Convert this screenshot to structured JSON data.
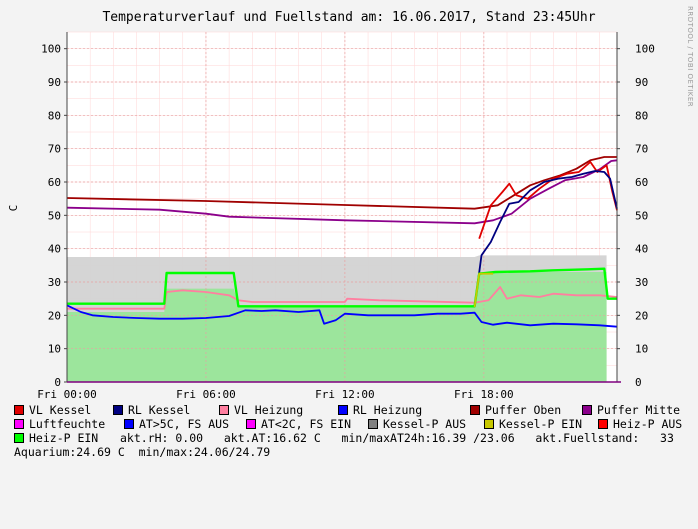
{
  "title": "Temperaturverlauf und Fuellstand am: 16.06.2017, Stand 23:45Uhr",
  "watermark": "RRDTOOL / TOBI OETIKER",
  "ylabel": "C",
  "legend": {
    "row1": [
      {
        "label": "VL Kessel",
        "color": "#e00000"
      },
      {
        "label": "RL Kessel",
        "color": "#000080"
      },
      {
        "label": "VL Heizung",
        "color": "#ff7fa0"
      },
      {
        "label": "RL Heizung",
        "color": "#0000ff"
      },
      {
        "label": "Puffer Oben",
        "color": "#a00000"
      },
      {
        "label": "Puffer Mitte",
        "color": "#8b008b"
      }
    ],
    "row2": [
      {
        "label": "Luftfeuchte",
        "color": "#ff00ff"
      },
      {
        "label": "AT>5C, FS AUS",
        "color": "#0000ff"
      },
      {
        "label": "AT<2C, FS EIN",
        "color": "#ff00ff"
      },
      {
        "label": "Kessel-P AUS",
        "color": "#808080"
      },
      {
        "label": "Kessel-P EIN",
        "color": "#c8c800"
      },
      {
        "label": "Heiz-P AUS",
        "color": "#ff0000"
      }
    ],
    "row3": [
      {
        "label": "Heiz-P EIN",
        "color": "#00ff00"
      }
    ],
    "row3_text": "akt.rH: 0.00   akt.AT:16.62 C   min/maxAT24h:16.39 /23.06   akt.Fuellstand:   33",
    "row4_text": "Aquarium:24.69 C  min/max:24.06/24.79"
  },
  "chart_data": {
    "type": "line",
    "x_unit": "hours since Fri 00:00",
    "xlim": [
      0,
      23.75
    ],
    "ylim": [
      0,
      105
    ],
    "yticks": [
      0,
      10,
      20,
      30,
      40,
      50,
      60,
      70,
      80,
      90,
      100
    ],
    "xticks": [
      {
        "label": "Fri 00:00",
        "x": 0
      },
      {
        "label": "Fri 06:00",
        "x": 6
      },
      {
        "label": "Fri 12:00",
        "x": 12
      },
      {
        "label": "Fri 18:00",
        "x": 18
      }
    ],
    "grid": true,
    "areas": [
      {
        "name": "Fuellstand",
        "color": "#99e699",
        "points": [
          [
            0,
            21
          ],
          [
            4.2,
            21
          ],
          [
            4.3,
            28
          ],
          [
            7.2,
            28
          ],
          [
            7.4,
            23
          ],
          [
            17.6,
            23
          ],
          [
            17.8,
            33
          ],
          [
            23.3,
            33
          ],
          [
            23.3,
            0
          ]
        ]
      },
      {
        "name": "Kessel-P AUS",
        "color": "#d3d3d3",
        "points": [
          [
            0,
            37.5
          ],
          [
            17.6,
            37.5
          ],
          [
            17.8,
            38
          ],
          [
            23.3,
            38
          ]
        ]
      }
    ],
    "series": [
      {
        "name": "Puffer Oben",
        "color": "#a00000",
        "points": [
          [
            0,
            55.2
          ],
          [
            6,
            54.3
          ],
          [
            12,
            53.1
          ],
          [
            17.6,
            52
          ],
          [
            18.6,
            53
          ],
          [
            19.3,
            56
          ],
          [
            20,
            59
          ],
          [
            20.6,
            60.5
          ],
          [
            21.3,
            62
          ],
          [
            22,
            64
          ],
          [
            22.6,
            66.5
          ],
          [
            23.2,
            67.5
          ],
          [
            23.75,
            67.5
          ]
        ]
      },
      {
        "name": "Puffer Mitte",
        "color": "#8b008b",
        "points": [
          [
            0,
            52.3
          ],
          [
            4,
            51.7
          ],
          [
            6,
            50.5
          ],
          [
            7,
            49.6
          ],
          [
            12,
            48.5
          ],
          [
            17.6,
            47.6
          ],
          [
            18.4,
            48.5
          ],
          [
            19.2,
            50.5
          ],
          [
            20,
            55
          ],
          [
            20.8,
            58
          ],
          [
            21.5,
            60.5
          ],
          [
            22.3,
            61.5
          ],
          [
            23,
            63.8
          ],
          [
            23.5,
            66.3
          ],
          [
            23.75,
            66.5
          ]
        ]
      },
      {
        "name": "VL Kessel",
        "color": "#e00000",
        "points": [
          [
            17.8,
            43
          ],
          [
            18.3,
            53
          ],
          [
            18.8,
            57
          ],
          [
            19.1,
            59.5
          ],
          [
            19.4,
            56
          ],
          [
            19.9,
            55
          ],
          [
            20.4,
            58
          ],
          [
            21,
            61
          ],
          [
            21.6,
            62.5
          ],
          [
            22.1,
            63
          ],
          [
            22.6,
            66
          ],
          [
            22.9,
            63
          ],
          [
            23.3,
            65
          ],
          [
            23.55,
            57
          ],
          [
            23.75,
            51.5
          ]
        ]
      },
      {
        "name": "RL Kessel",
        "color": "#000080",
        "points": [
          [
            17.6,
            22.5
          ],
          [
            17.9,
            38
          ],
          [
            18.3,
            42
          ],
          [
            18.7,
            48
          ],
          [
            19.1,
            53.5
          ],
          [
            19.5,
            54
          ],
          [
            20,
            57.5
          ],
          [
            20.6,
            60
          ],
          [
            21.2,
            61
          ],
          [
            21.8,
            61.5
          ],
          [
            22.3,
            62.5
          ],
          [
            22.8,
            63.3
          ],
          [
            23.2,
            63
          ],
          [
            23.45,
            61
          ],
          [
            23.75,
            52
          ]
        ]
      },
      {
        "name": "VL Heizung",
        "color": "#ff7fa0",
        "points": [
          [
            0,
            22
          ],
          [
            4.2,
            22
          ],
          [
            4.3,
            27
          ],
          [
            5,
            27.5
          ],
          [
            6,
            27
          ],
          [
            7,
            26
          ],
          [
            7.4,
            24.5
          ],
          [
            8,
            24
          ],
          [
            12,
            24
          ],
          [
            12.1,
            25
          ],
          [
            13.5,
            24.5
          ],
          [
            17.6,
            23.8
          ],
          [
            18.2,
            24.5
          ],
          [
            18.7,
            28.5
          ],
          [
            19,
            25
          ],
          [
            19.6,
            26
          ],
          [
            20.4,
            25.5
          ],
          [
            21,
            26.5
          ],
          [
            22,
            26
          ],
          [
            23,
            26
          ],
          [
            23.75,
            25.5
          ]
        ]
      },
      {
        "name": "RL Heizung",
        "color": "#0000ff",
        "points": [
          [
            0,
            23
          ],
          [
            0.6,
            21
          ],
          [
            1.1,
            20
          ],
          [
            2,
            19.5
          ],
          [
            3,
            19.2
          ],
          [
            4,
            19
          ],
          [
            5,
            19
          ],
          [
            6,
            19.2
          ],
          [
            7,
            19.8
          ],
          [
            7.7,
            21.5
          ],
          [
            8.4,
            21.3
          ],
          [
            9,
            21.5
          ],
          [
            10,
            21
          ],
          [
            10.9,
            21.5
          ],
          [
            11.1,
            17.5
          ],
          [
            11.6,
            18.5
          ],
          [
            12,
            20.5
          ],
          [
            13,
            20
          ],
          [
            14,
            20
          ],
          [
            15,
            20
          ],
          [
            16,
            20.5
          ],
          [
            17,
            20.5
          ],
          [
            17.6,
            20.8
          ],
          [
            17.9,
            18
          ],
          [
            18.4,
            17.2
          ],
          [
            19,
            17.8
          ],
          [
            20,
            17
          ],
          [
            21,
            17.5
          ],
          [
            22,
            17.3
          ],
          [
            23,
            17
          ],
          [
            23.75,
            16.6
          ]
        ]
      },
      {
        "name": "Heiz-P EIN",
        "color": "#00ff00",
        "points": [
          [
            0,
            23.5
          ],
          [
            4.2,
            23.5
          ],
          [
            4.3,
            32.7
          ],
          [
            7.2,
            32.7
          ],
          [
            7.4,
            22.7
          ],
          [
            17.6,
            22.7
          ],
          [
            17.8,
            32.5
          ],
          [
            18.5,
            33
          ],
          [
            20,
            33.2
          ],
          [
            21,
            33.5
          ],
          [
            22.5,
            33.8
          ],
          [
            23.2,
            34
          ],
          [
            23.35,
            25
          ],
          [
            23.75,
            25
          ]
        ]
      },
      {
        "name": "Kessel-P EIN",
        "color": "#c8c800",
        "points": [
          [
            17.6,
            22.5
          ],
          [
            17.8,
            32.5
          ],
          [
            18.4,
            32.5
          ]
        ]
      }
    ]
  }
}
